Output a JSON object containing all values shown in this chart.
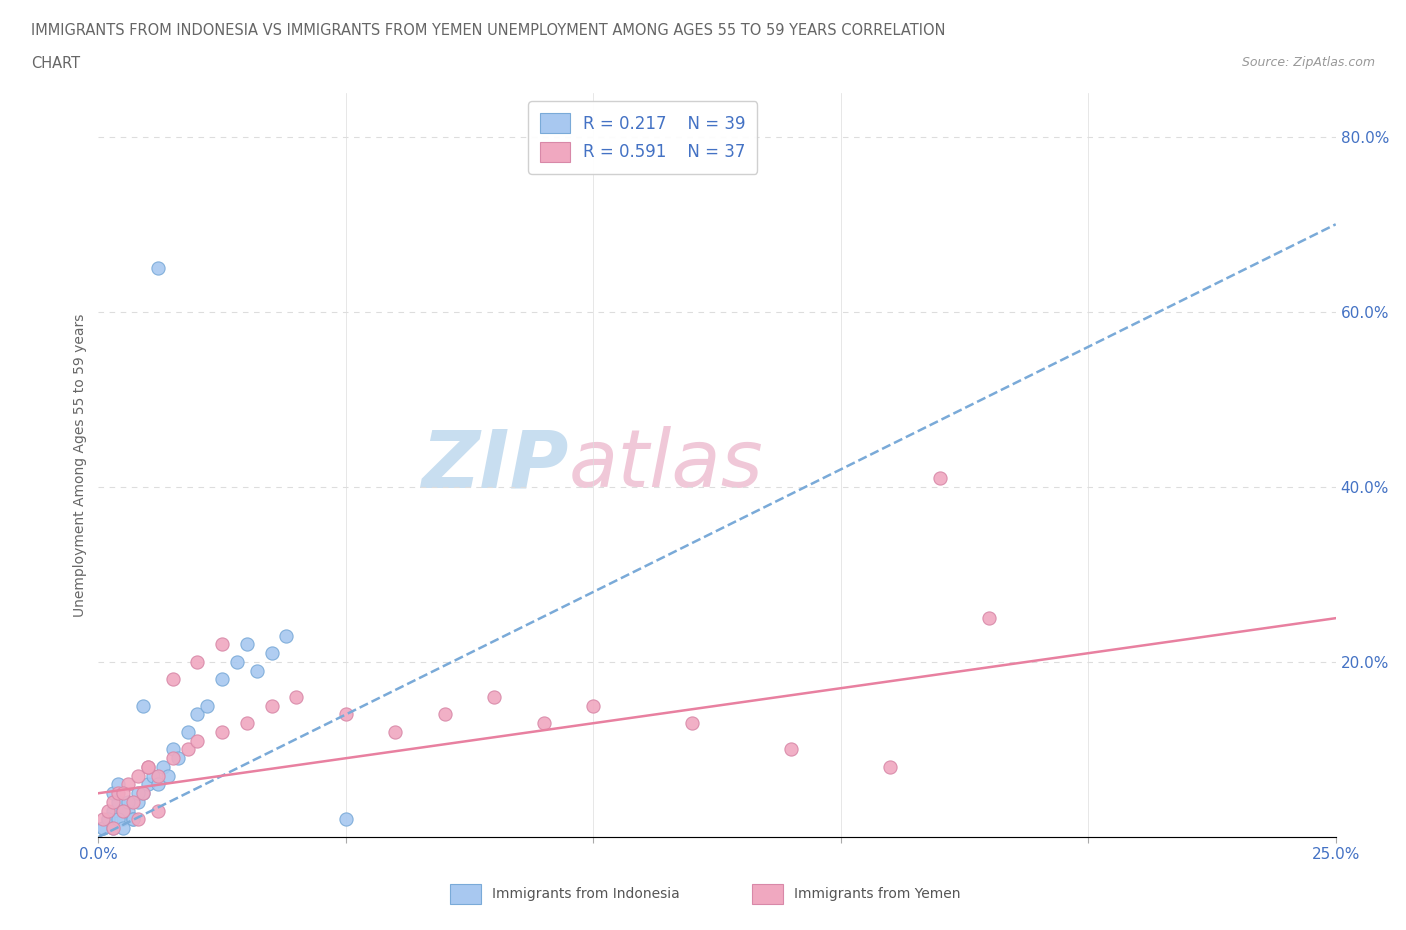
{
  "title_line1": "IMMIGRANTS FROM INDONESIA VS IMMIGRANTS FROM YEMEN UNEMPLOYMENT AMONG AGES 55 TO 59 YEARS CORRELATION",
  "title_line2": "CHART",
  "source": "Source: ZipAtlas.com",
  "ylabel": "Unemployment Among Ages 55 to 59 years",
  "xlim": [
    0.0,
    0.25
  ],
  "ylim": [
    0.0,
    0.85
  ],
  "xtick_positions": [
    0.0,
    0.05,
    0.1,
    0.15,
    0.2,
    0.25
  ],
  "xtick_labels": [
    "0.0%",
    "",
    "",
    "",
    "",
    "25.0%"
  ],
  "ytick_vals_right": [
    0.2,
    0.4,
    0.6,
    0.8
  ],
  "ytick_labels_right": [
    "20.0%",
    "40.0%",
    "60.0%",
    "80.0%"
  ],
  "color_indonesia": "#a8c8f0",
  "color_indonesia_edge": "#7aaad8",
  "color_yemen": "#f0a8c0",
  "color_yemen_edge": "#d888a8",
  "color_text_blue": "#4472c4",
  "color_trend_indonesia": "#7aaad8",
  "color_trend_yemen": "#e880a0",
  "watermark_text": "ZIPatlas",
  "watermark_color": "#d8eef8",
  "indonesia_scatter_x": [
    0.002,
    0.003,
    0.001,
    0.004,
    0.005,
    0.003,
    0.006,
    0.007,
    0.004,
    0.008,
    0.009,
    0.005,
    0.01,
    0.006,
    0.011,
    0.008,
    0.013,
    0.012,
    0.015,
    0.014,
    0.016,
    0.018,
    0.02,
    0.022,
    0.025,
    0.028,
    0.03,
    0.032,
    0.035,
    0.038,
    0.001,
    0.002,
    0.003,
    0.004,
    0.005,
    0.007,
    0.009,
    0.05,
    0.012
  ],
  "indonesia_scatter_y": [
    0.02,
    0.03,
    0.01,
    0.04,
    0.02,
    0.05,
    0.03,
    0.02,
    0.06,
    0.04,
    0.05,
    0.03,
    0.06,
    0.04,
    0.07,
    0.05,
    0.08,
    0.06,
    0.1,
    0.07,
    0.09,
    0.12,
    0.14,
    0.15,
    0.18,
    0.2,
    0.22,
    0.19,
    0.21,
    0.23,
    0.01,
    0.02,
    0.01,
    0.02,
    0.01,
    0.02,
    0.15,
    0.02,
    0.65
  ],
  "yemen_scatter_x": [
    0.001,
    0.002,
    0.003,
    0.004,
    0.005,
    0.006,
    0.007,
    0.008,
    0.009,
    0.01,
    0.012,
    0.015,
    0.018,
    0.02,
    0.025,
    0.03,
    0.035,
    0.04,
    0.005,
    0.01,
    0.015,
    0.02,
    0.025,
    0.05,
    0.06,
    0.07,
    0.08,
    0.09,
    0.1,
    0.12,
    0.14,
    0.16,
    0.17,
    0.18,
    0.003,
    0.008,
    0.012
  ],
  "yemen_scatter_y": [
    0.02,
    0.03,
    0.04,
    0.05,
    0.03,
    0.06,
    0.04,
    0.07,
    0.05,
    0.08,
    0.07,
    0.09,
    0.1,
    0.11,
    0.12,
    0.13,
    0.15,
    0.16,
    0.05,
    0.08,
    0.18,
    0.2,
    0.22,
    0.14,
    0.12,
    0.14,
    0.16,
    0.13,
    0.15,
    0.13,
    0.1,
    0.08,
    0.41,
    0.25,
    0.01,
    0.02,
    0.03
  ],
  "indonesia_trend_x": [
    0.0,
    0.25
  ],
  "indonesia_trend_y": [
    0.0,
    0.7
  ],
  "yemen_trend_x": [
    0.0,
    0.25
  ],
  "yemen_trend_y": [
    0.05,
    0.25
  ],
  "background_color": "#ffffff",
  "grid_color": "#dddddd"
}
